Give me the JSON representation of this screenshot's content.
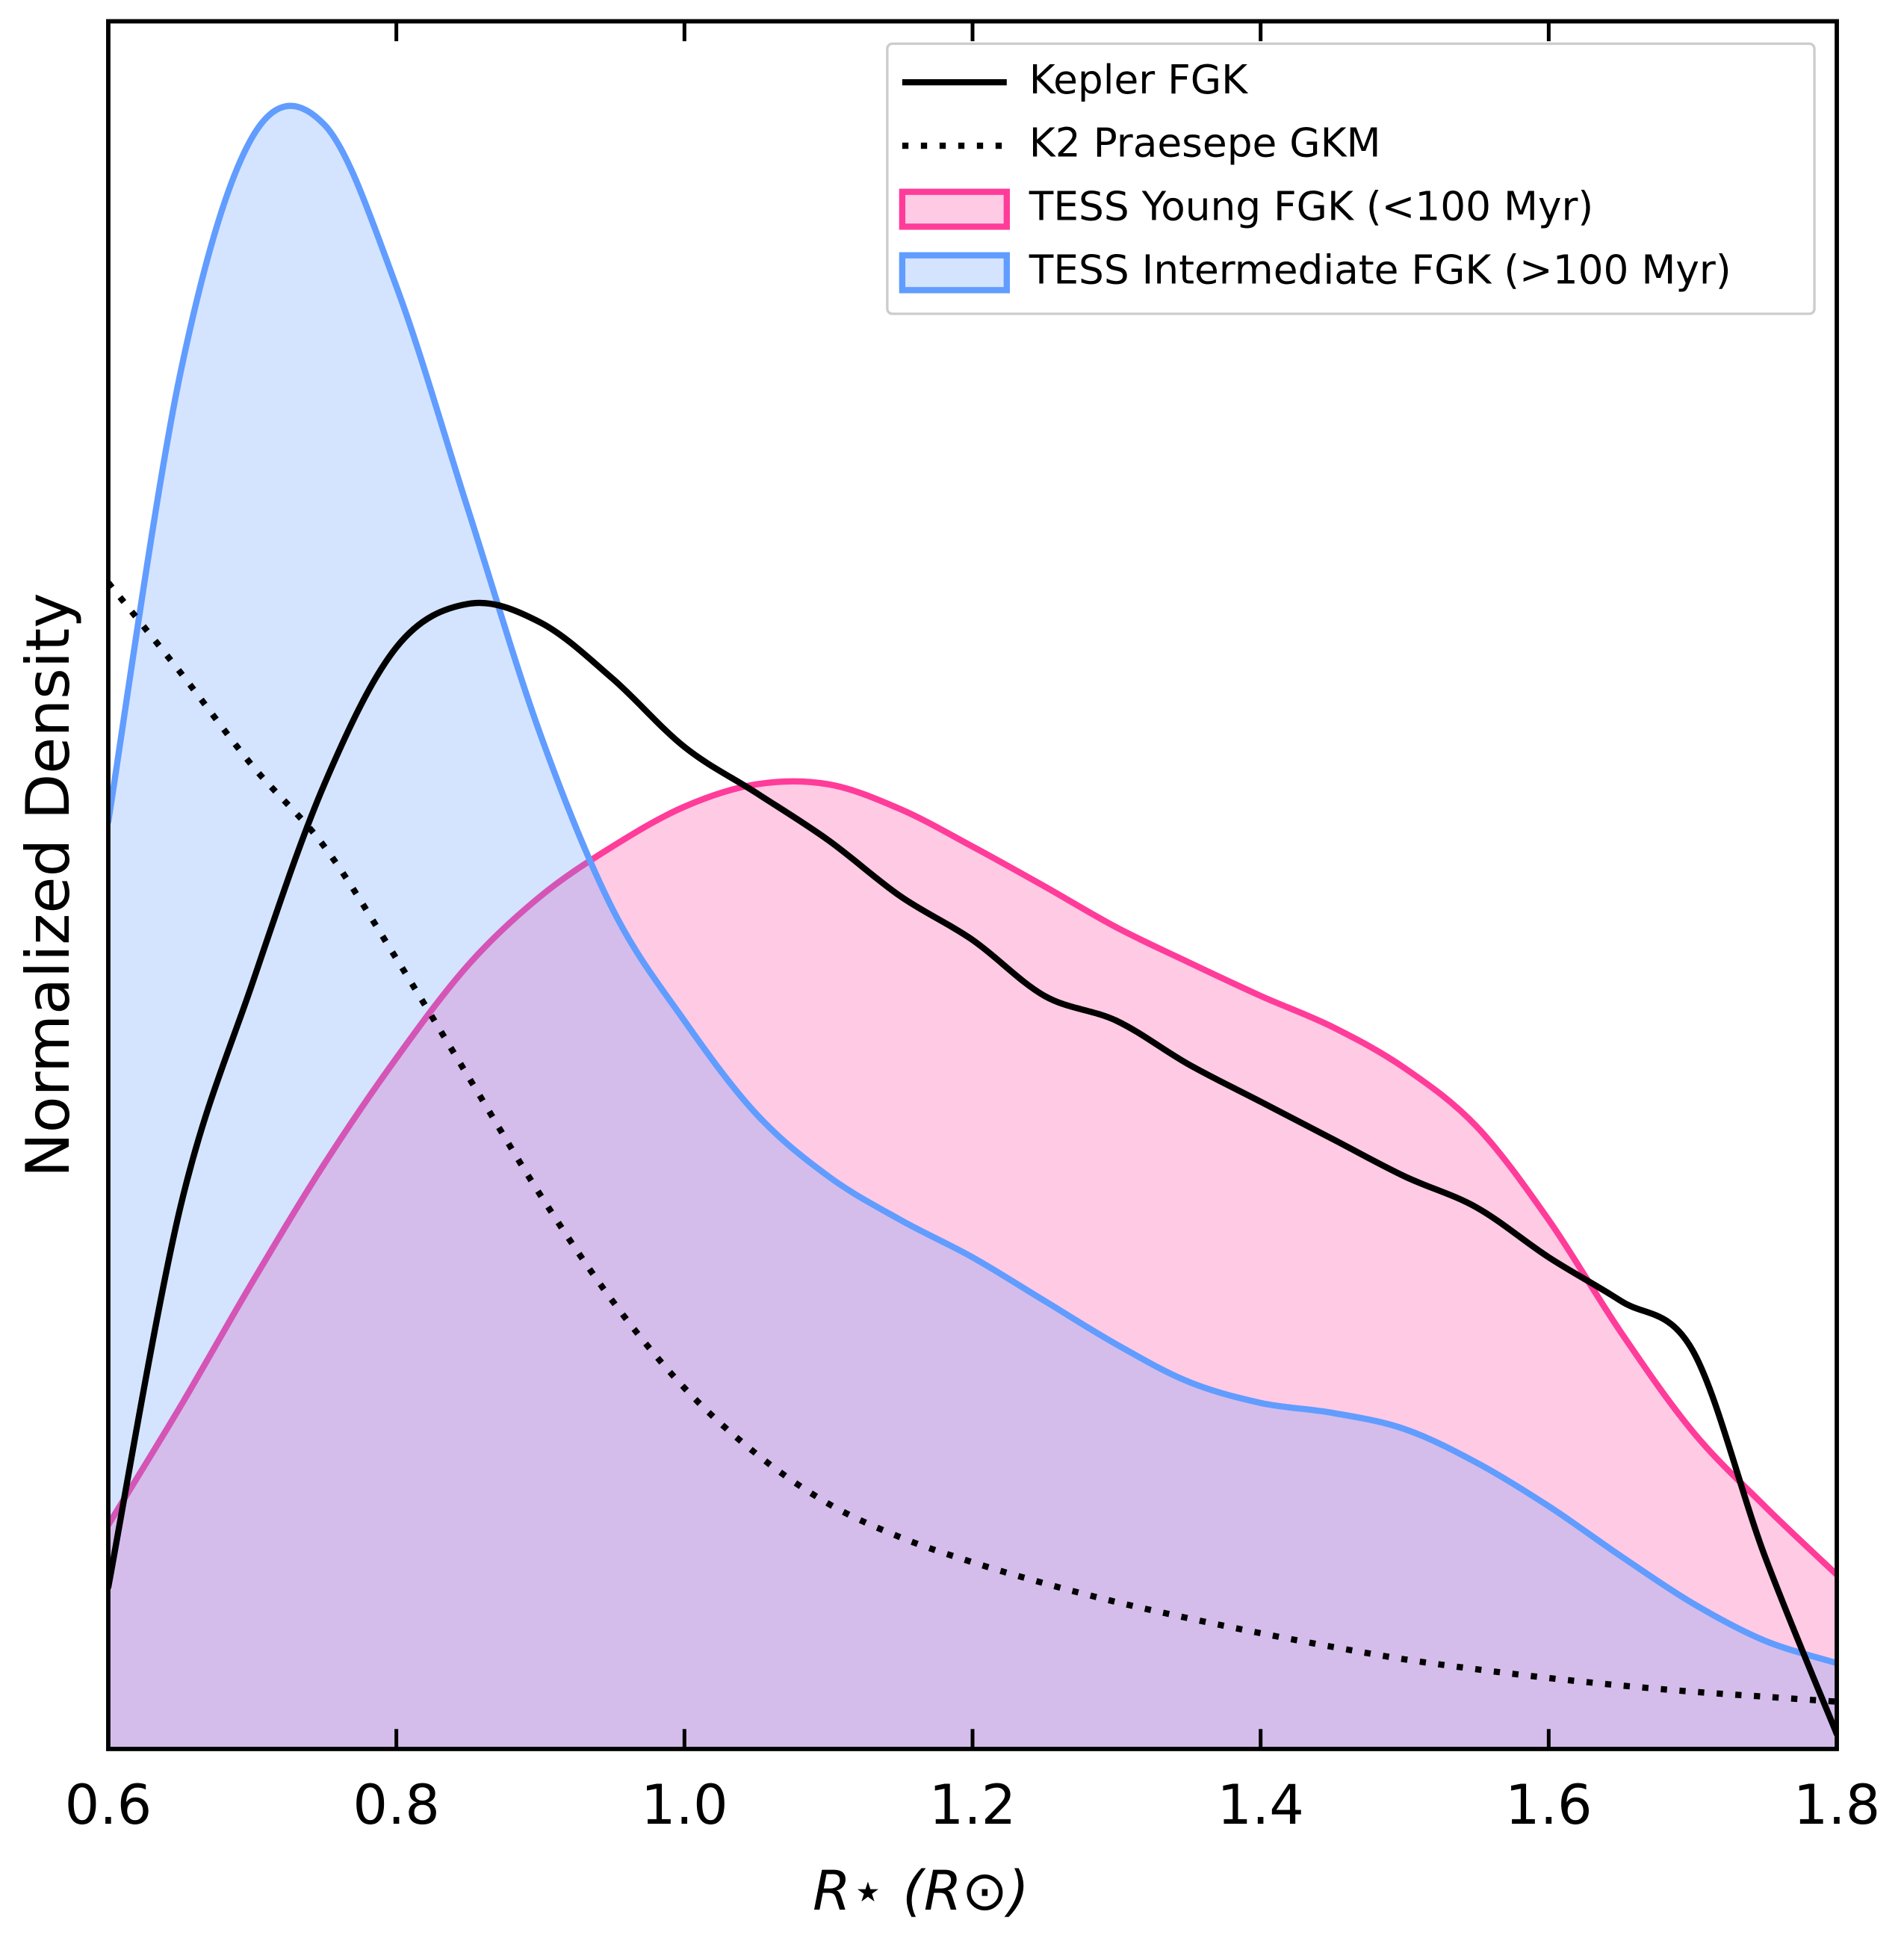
{
  "chart_data": {
    "type": "line",
    "xlabel": "R⋆ (R⊙)",
    "ylabel": "Normalized Density",
    "x": [
      0.6,
      0.65,
      0.7,
      0.75,
      0.8,
      0.85,
      0.9,
      0.95,
      1.0,
      1.05,
      1.1,
      1.15,
      1.2,
      1.25,
      1.3,
      1.35,
      1.4,
      1.45,
      1.5,
      1.55,
      1.6,
      1.65,
      1.7,
      1.75,
      1.8
    ],
    "xlim": [
      0.6,
      1.8
    ],
    "xticks": [
      0.6,
      0.8,
      {
        "value": 1,
        "label": "1.0"
      },
      1.2,
      1.4,
      1.6,
      1.8
    ],
    "ylim": [
      0,
      1.388
    ],
    "legend": "upper right",
    "series": [
      {
        "name": "TESS Young FGK (<100 Myr)",
        "color": "#ff3c9a",
        "fill": true,
        "linestyle": "solid",
        "values": [
          0.18,
          0.275,
          0.375,
          0.47,
          0.555,
          0.63,
          0.685,
          0.725,
          0.757,
          0.775,
          0.775,
          0.755,
          0.725,
          0.693,
          0.66,
          0.632,
          0.605,
          0.58,
          0.547,
          0.5,
          0.425,
          0.335,
          0.255,
          0.195,
          0.14
        ]
      },
      {
        "name": "TESS Intermediate FGK (>100 Myr)",
        "color": "#619cff",
        "fill": true,
        "linestyle": "solid",
        "values": [
          0.745,
          1.105,
          1.295,
          1.305,
          1.175,
          0.995,
          0.815,
          0.675,
          0.585,
          0.51,
          0.46,
          0.425,
          0.395,
          0.36,
          0.325,
          0.295,
          0.278,
          0.27,
          0.257,
          0.23,
          0.195,
          0.155,
          0.117,
          0.087,
          0.069
        ]
      },
      {
        "name": "Kepler FGK",
        "color": "#000000",
        "fill": false,
        "linestyle": "solid",
        "values": [
          0.13,
          0.435,
          0.615,
          0.775,
          0.885,
          0.92,
          0.905,
          0.86,
          0.805,
          0.768,
          0.73,
          0.685,
          0.65,
          0.605,
          0.585,
          0.55,
          0.52,
          0.49,
          0.46,
          0.435,
          0.395,
          0.36,
          0.32,
          0.155,
          0.012
        ]
      },
      {
        "name": "K2 Praesepe GKM",
        "color": "#000000",
        "fill": false,
        "linestyle": "dotted",
        "values": [
          0.937,
          0.865,
          0.79,
          0.725,
          0.635,
          0.54,
          0.445,
          0.36,
          0.29,
          0.237,
          0.197,
          0.17,
          0.15,
          0.133,
          0.118,
          0.105,
          0.093,
          0.082,
          0.072,
          0.064,
          0.057,
          0.051,
          0.046,
          0.042,
          0.038
        ]
      }
    ]
  }
}
